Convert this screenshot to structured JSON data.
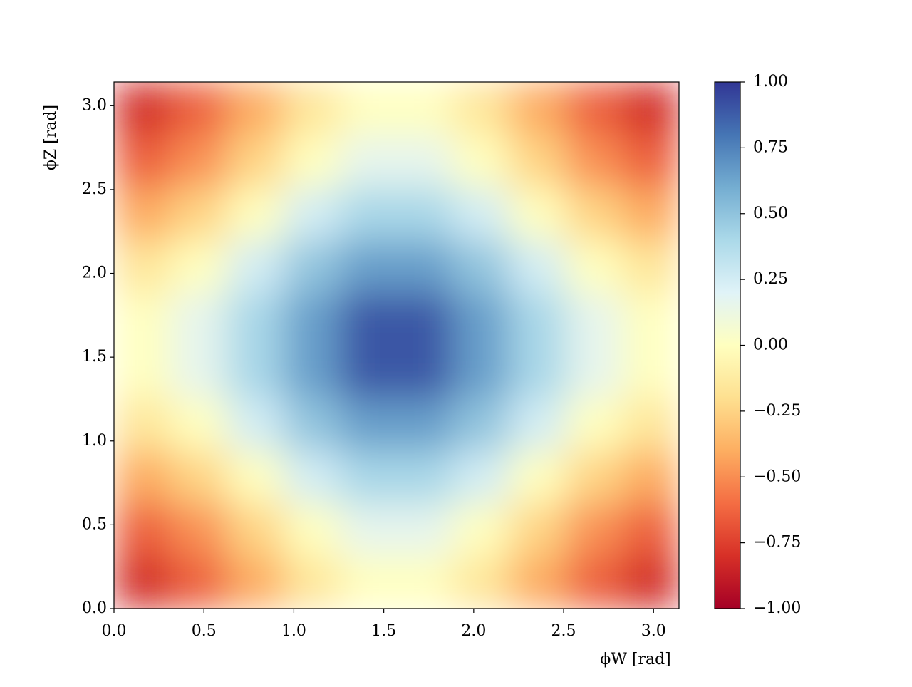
{
  "chart_data": {
    "type": "heatmap",
    "xlabel": "ϕW [rad]",
    "ylabel": "ϕZ [rad]",
    "xlim": [
      0,
      3.1416
    ],
    "ylim": [
      0,
      3.1416
    ],
    "xticks": [
      {
        "value": 0,
        "label": "0.0"
      },
      0.5,
      {
        "value": 1,
        "label": "1.0"
      },
      1.5,
      {
        "value": 2,
        "label": "2.0"
      },
      2.5,
      {
        "value": 3,
        "label": "3.0"
      }
    ],
    "yticks": [
      {
        "value": 0,
        "label": "0.0"
      },
      0.5,
      {
        "value": 1,
        "label": "1.0"
      },
      1.5,
      {
        "value": 2,
        "label": "2.0"
      },
      2.5,
      {
        "value": 3,
        "label": "3.0"
      }
    ],
    "colormap": "RdYlBu",
    "clim": [
      -1,
      1
    ],
    "cticks": [
      {
        "value": -1,
        "label": "−1.00"
      },
      {
        "value": -0.75,
        "label": "−0.75"
      },
      {
        "value": -0.5,
        "label": "−0.50"
      },
      {
        "value": -0.25,
        "label": "−0.25"
      },
      {
        "value": 0,
        "label": "0.00"
      },
      {
        "value": 0.25,
        "label": "0.25"
      },
      {
        "value": 0.5,
        "label": "0.50"
      },
      {
        "value": 0.75,
        "label": "0.75"
      },
      {
        "value": 1,
        "label": "1.00"
      }
    ],
    "z": [
      [
        -0.82,
        -0.65,
        -0.41,
        -0.16,
        0,
        0,
        -0.16,
        -0.41,
        -0.65,
        -0.82
      ],
      [
        -0.65,
        -0.49,
        -0.25,
        0,
        0.16,
        0.16,
        0,
        -0.25,
        -0.49,
        -0.65
      ],
      [
        -0.41,
        -0.25,
        0,
        0.25,
        0.41,
        0.41,
        0.25,
        0,
        -0.25,
        -0.41
      ],
      [
        -0.16,
        0,
        0.25,
        0.49,
        0.65,
        0.65,
        0.49,
        0.25,
        0,
        -0.16
      ],
      [
        0,
        0.16,
        0.41,
        0.65,
        0.9,
        0.9,
        0.65,
        0.41,
        0.16,
        0
      ],
      [
        0,
        0.16,
        0.41,
        0.65,
        0.9,
        0.9,
        0.65,
        0.41,
        0.16,
        0
      ],
      [
        -0.16,
        0,
        0.25,
        0.49,
        0.65,
        0.65,
        0.49,
        0.25,
        0,
        -0.16
      ],
      [
        -0.41,
        -0.25,
        0,
        0.25,
        0.41,
        0.41,
        0.25,
        0,
        -0.25,
        -0.41
      ],
      [
        -0.65,
        -0.49,
        -0.25,
        0,
        0.16,
        0.16,
        0,
        -0.25,
        -0.49,
        -0.65
      ],
      [
        -0.82,
        -0.65,
        -0.41,
        -0.16,
        0,
        0,
        -0.16,
        -0.41,
        -0.65,
        -0.82
      ]
    ]
  }
}
